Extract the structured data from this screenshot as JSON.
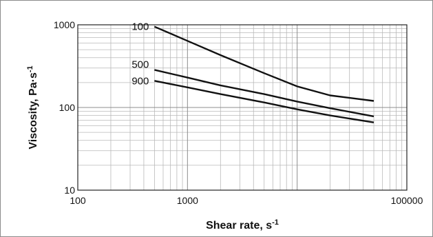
{
  "chart_data": {
    "type": "line",
    "title": "",
    "xlabel": "Shear rate, s",
    "xlabel_sup": "-1",
    "ylabel": "Viscosity, Pa·s",
    "ylabel_sup": "-1",
    "x_scale": "log",
    "y_scale": "log",
    "xlim": [
      100,
      100000
    ],
    "ylim": [
      10,
      1000
    ],
    "x_ticks": [
      {
        "value": 100,
        "label": "100"
      },
      {
        "value": 1000,
        "label": "1000"
      },
      {
        "value": 100000,
        "label": "100000"
      }
    ],
    "y_ticks": [
      {
        "value": 10,
        "label": "10"
      },
      {
        "value": 100,
        "label": "100"
      },
      {
        "value": 1000,
        "label": "1000"
      }
    ],
    "grid": true,
    "series_labels_position": "inline-left",
    "line_color": "#111111",
    "series": [
      {
        "name": "100",
        "x": [
          500,
          1000,
          2000,
          5000,
          10000,
          20000,
          50000
        ],
        "y": [
          950,
          640,
          430,
          260,
          180,
          140,
          120
        ]
      },
      {
        "name": "500",
        "x": [
          500,
          1000,
          2000,
          5000,
          10000,
          20000,
          50000
        ],
        "y": [
          285,
          230,
          185,
          145,
          118,
          98,
          78
        ]
      },
      {
        "name": "900",
        "x": [
          500,
          1000,
          2000,
          5000,
          10000,
          20000,
          50000
        ],
        "y": [
          210,
          175,
          145,
          115,
          95,
          80,
          66
        ]
      }
    ]
  }
}
